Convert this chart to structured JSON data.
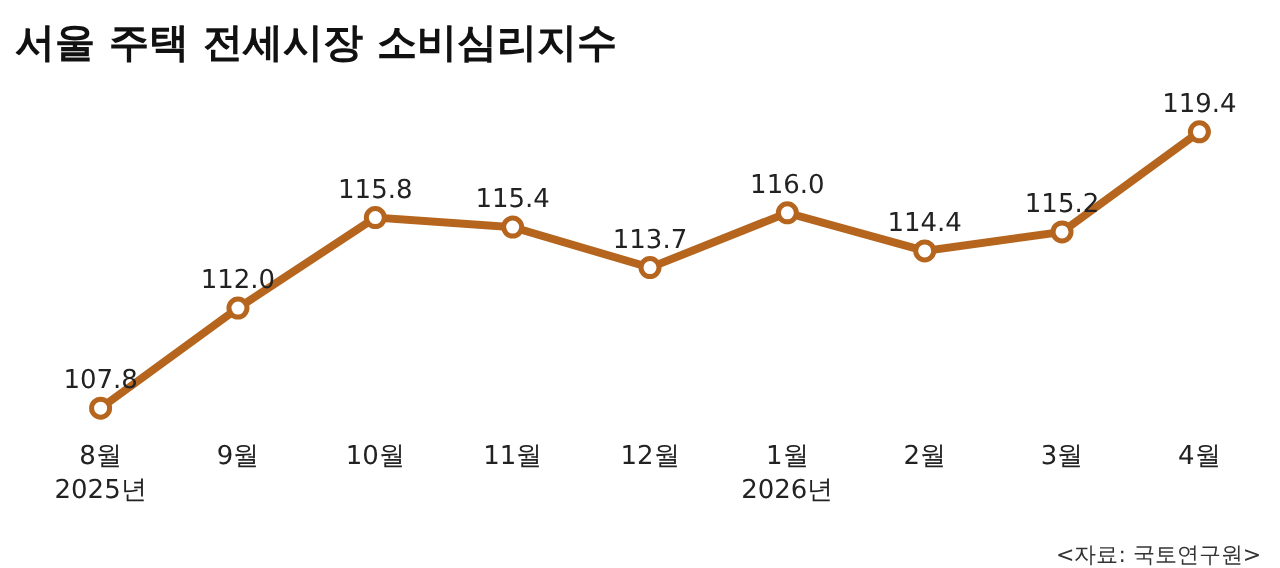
{
  "chart_data": {
    "type": "line",
    "title": "서울 주택 전세시장 소비심리지수",
    "categories": [
      "8월\n2025년",
      "9월",
      "10월",
      "11월",
      "12월",
      "1월\n2026년",
      "2월",
      "3월",
      "4월"
    ],
    "series": [
      {
        "color": "#b5651d",
        "values": [
          107.8,
          112.0,
          115.8,
          115.4,
          113.7,
          116.0,
          114.4,
          115.2,
          119.4
        ],
        "value_labels": [
          "107.8",
          "112.0",
          "115.8",
          "115.4",
          "113.7",
          "116.0",
          "114.4",
          "115.2",
          "119.4"
        ]
      }
    ],
    "marker": "circle",
    "line_style": "solid",
    "grid": false,
    "tick_labels": "x",
    "annotations": [
      "<자료: 국토연구원>"
    ]
  }
}
